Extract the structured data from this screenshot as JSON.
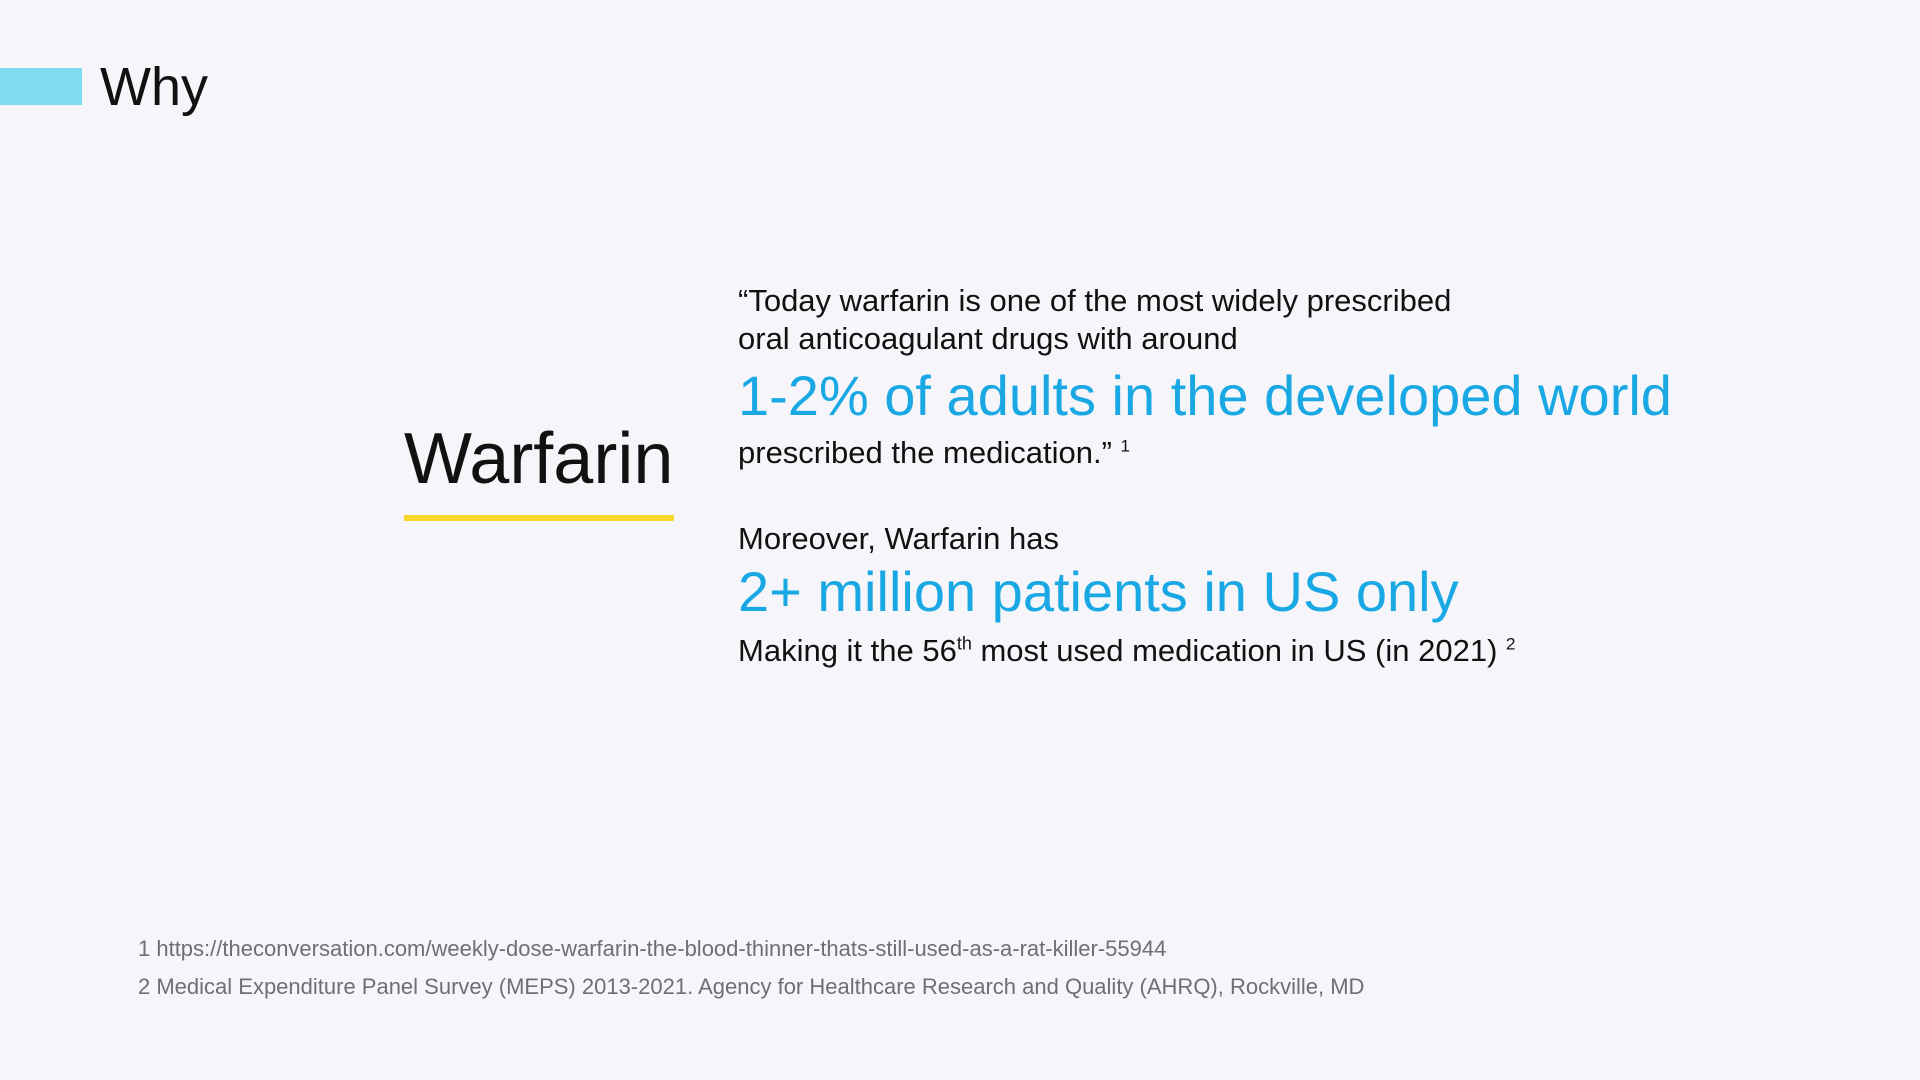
{
  "slide": {
    "title": "Why"
  },
  "subject": {
    "label": "Warfarin"
  },
  "content": {
    "quote_line_1": "“Today warfarin is one of the most widely prescribed",
    "quote_line_2": "oral anticoagulant drugs with around",
    "highlight_1": "1-2% of adults in the developed world",
    "quote_line_3": "prescribed the medication.”",
    "quote_ref": "1",
    "moreover_line": "Moreover, Warfarin has",
    "highlight_2": "2+ million patients in US only",
    "rank_prefix": "Making it the 56",
    "rank_suffix_sup": "th",
    "rank_rest": " most used medication in US (in 2021)",
    "rank_ref": "2"
  },
  "footnotes": [
    "1 https://theconversation.com/weekly-dose-warfarin-the-blood-thinner-thats-still-used-as-a-rat-killer-55944",
    "2 Medical Expenditure Panel Survey (MEPS) 2013-2021. Agency for Healthcare Research and Quality (AHRQ), Rockville, MD"
  ],
  "colors": {
    "background": "#f6f6fa",
    "accent_bar": "#7fdcf0",
    "highlight_text": "#1aa8e4",
    "underline": "#f7d72a",
    "footnote_text": "#6f6f73"
  }
}
